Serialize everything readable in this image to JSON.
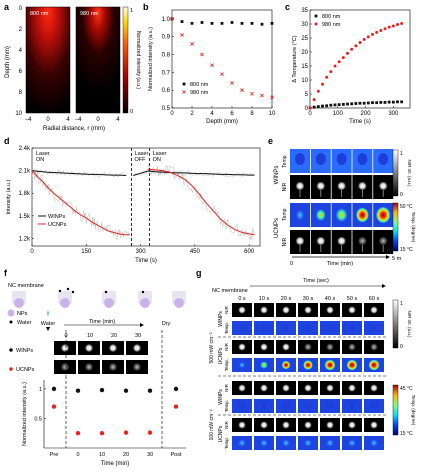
{
  "panels": {
    "a": {
      "label": "a",
      "img1_label": "800 nm",
      "img2_label": "980 nm",
      "ylabel": "Depth (mm)",
      "xlabel": "Radial distance, r (mm)",
      "yticks": [
        "0",
        "2",
        "4",
        "6",
        "8",
        "10"
      ],
      "xticks": [
        "−4",
        "0",
        "4",
        "−4",
        "0",
        "4"
      ],
      "cbar_label": "Normalized intensity (a.u.)",
      "cbar_max": "1",
      "cbar_min": "0"
    },
    "b": {
      "label": "b"
    },
    "c": {
      "label": "c"
    },
    "d": {
      "label": "d",
      "segments": [
        "Laser\nON",
        "Laser\nOFF",
        "Laser\nON"
      ],
      "legend": [
        "WINPs",
        "UCNPs"
      ]
    },
    "e": {
      "label": "e",
      "row_labels": [
        "WINPs",
        "UCNPs"
      ],
      "sub_labels": [
        "Temp.",
        "NIR",
        "Temp.",
        "NIR"
      ],
      "cbar1_top": "1",
      "cbar1_bottom": "0",
      "cbar1_label": "NIR Int. (a.u.)",
      "cbar2_top": "50 °C",
      "cbar2_bottom": "15 °C",
      "cbar2_label": "Temp. (degree)",
      "time_label": "Time (min)",
      "time_end": "5 m",
      "time_start": "0"
    },
    "f": {
      "label": "f",
      "membrane": "NC membrane",
      "legend_nps": "NPs",
      "legend_water": "Water",
      "water_label": "Water",
      "dry_label": "Dry",
      "time_header": "Time (min)",
      "times": [
        "0",
        "10",
        "20",
        "30"
      ],
      "row_labels": [
        "WINPs",
        "UCNPs"
      ],
      "xticks": [
        "Pre",
        "0",
        "10",
        "20",
        "30",
        "Post"
      ],
      "xlabel": "Time (min)",
      "ylabel": "Normalized intensity (a.u.)",
      "yticks": [
        "1",
        "0.5"
      ],
      "winps_vals": [
        1.0,
        0.97,
        0.98,
        0.97,
        0.97,
        1.0
      ],
      "ucnps_vals": [
        0.7,
        0.25,
        0.25,
        0.26,
        0.26,
        0.7
      ]
    },
    "g": {
      "label": "g",
      "membrane": "NC membrane",
      "time_header": "Time (sec)",
      "times": [
        "0 s",
        "10 s",
        "20 s",
        "30 s",
        "40 s",
        "50 s",
        "60 s"
      ],
      "power1": "500 mW cm⁻²",
      "power2": "100 mW cm⁻²",
      "sub_rows": [
        "WINPs",
        "UCNPs"
      ],
      "modes": [
        "NIR",
        "Temp.",
        "NIR",
        "Temp."
      ],
      "cbar1_top": "1",
      "cbar1_bottom": "0",
      "cbar1_label": "NIR Int. (a.u.)",
      "cbar2_top": "45 °C",
      "cbar2_bottom": "15 °C",
      "cbar2_label": "Temp. (degree)"
    }
  },
  "chart_data": [
    {
      "type": "scatter",
      "panel": "b",
      "xlabel": "Depth (mm)",
      "ylabel": "Normalized intensity (a.u.)",
      "xlim": [
        0,
        10
      ],
      "ylim": [
        0.5,
        1.05
      ],
      "xticks": [
        0,
        2,
        4,
        6,
        8,
        10
      ],
      "yticks": [
        0.5,
        0.6,
        0.7,
        0.8,
        0.9,
        1.0
      ],
      "legend": "bottom-left",
      "series": [
        {
          "name": "800 nm",
          "color": "#111111",
          "marker": "square",
          "x": [
            0,
            1,
            2,
            3,
            4,
            5,
            6,
            7,
            8,
            9,
            10
          ],
          "y": [
            1.0,
            0.985,
            0.975,
            0.98,
            0.975,
            0.975,
            0.98,
            0.975,
            0.975,
            0.97,
            0.975
          ]
        },
        {
          "name": "980 nm",
          "color": "#e8231f",
          "marker": "x",
          "x": [
            0,
            1,
            2,
            3,
            4,
            5,
            6,
            7,
            8,
            9,
            10
          ],
          "y": [
            1.0,
            0.91,
            0.86,
            0.8,
            0.74,
            0.69,
            0.64,
            0.6,
            0.58,
            0.57,
            0.56
          ]
        }
      ]
    },
    {
      "type": "scatter",
      "panel": "c",
      "xlabel": "Time (s)",
      "ylabel": "Δ Temperature (°C)",
      "xlim": [
        0,
        360
      ],
      "ylim": [
        0,
        35
      ],
      "xticks": [
        0,
        100,
        200,
        300
      ],
      "yticks": [
        0,
        5,
        10,
        15,
        20,
        25,
        30,
        35
      ],
      "legend": "top-left",
      "series": [
        {
          "name": "800 nm",
          "color": "#111111",
          "marker": "square",
          "x": [
            0,
            15,
            30,
            45,
            60,
            75,
            90,
            105,
            120,
            135,
            150,
            165,
            180,
            195,
            210,
            225,
            240,
            255,
            270,
            285,
            300,
            315,
            330
          ],
          "y": [
            0,
            0.3,
            0.5,
            0.7,
            0.8,
            1.0,
            1.1,
            1.2,
            1.3,
            1.4,
            1.5,
            1.6,
            1.7,
            1.7,
            1.8,
            1.9,
            1.9,
            2.0,
            2.0,
            2.1,
            2.1,
            2.2,
            2.2
          ]
        },
        {
          "name": "980 nm",
          "color": "#e8231f",
          "marker": "circle",
          "x": [
            0,
            15,
            30,
            45,
            60,
            75,
            90,
            105,
            120,
            135,
            150,
            165,
            180,
            195,
            210,
            225,
            240,
            255,
            270,
            285,
            300,
            315,
            330
          ],
          "y": [
            0,
            3,
            6,
            8.5,
            11,
            13,
            15,
            16.5,
            18,
            19.5,
            21,
            22.2,
            23.4,
            24.5,
            25.4,
            26.3,
            27,
            27.7,
            28.3,
            28.9,
            29.3,
            29.8,
            30.2
          ]
        }
      ]
    },
    {
      "type": "line",
      "panel": "d",
      "xlabel": "Time (s)",
      "ylabel": "Intensity (a.u.)",
      "xlim": [
        0,
        630
      ],
      "ylim": [
        1100,
        2400
      ],
      "xticks": [
        0,
        150,
        300,
        450,
        600
      ],
      "yticks": [
        1200,
        1500,
        1800,
        2100,
        2400
      ],
      "ytick_labels": [
        "1.2k",
        "1.5k",
        "1.8k",
        "2.1k",
        "2.4k"
      ],
      "laser_off_region": [
        275,
        325
      ],
      "series": [
        {
          "name": "WINPs",
          "color": "#111111",
          "x": [
            0,
            20,
            40,
            60,
            80,
            100,
            120,
            140,
            160,
            180,
            200,
            220,
            240,
            260,
            280,
            320,
            340,
            360,
            380,
            400,
            420,
            440,
            460,
            480,
            500,
            520,
            540,
            560,
            580,
            600,
            615
          ],
          "y": [
            2100,
            2090,
            2080,
            2075,
            2070,
            2065,
            2060,
            2055,
            2050,
            2050,
            2045,
            2040,
            2040,
            2035,
            2035,
            2095,
            2085,
            2080,
            2075,
            2070,
            2070,
            2065,
            2060,
            2060,
            2055,
            2050,
            2050,
            2045,
            2045,
            2040,
            2040
          ]
        },
        {
          "name": "UCNPs",
          "color": "#e8231f",
          "x": [
            0,
            15,
            30,
            45,
            60,
            75,
            90,
            105,
            120,
            135,
            150,
            165,
            180,
            195,
            210,
            225,
            240,
            255,
            270,
            320,
            340,
            360,
            380,
            400,
            420,
            440,
            460,
            480,
            500,
            520,
            540,
            560,
            580,
            600,
            615
          ],
          "y": [
            2100,
            2020,
            1950,
            1870,
            1800,
            1740,
            1680,
            1620,
            1560,
            1510,
            1470,
            1420,
            1380,
            1340,
            1300,
            1280,
            1260,
            1250,
            1250,
            2120,
            2110,
            2100,
            2080,
            2040,
            1990,
            1910,
            1800,
            1680,
            1570,
            1460,
            1380,
            1320,
            1280,
            1260,
            1250
          ]
        }
      ]
    },
    {
      "type": "scatter",
      "panel": "f",
      "categories": [
        "Pre",
        "0",
        "10",
        "20",
        "30",
        "Post"
      ],
      "xlabel": "Time (min)",
      "ylabel": "Normalized intensity (a.u.)",
      "series": [
        {
          "name": "WINPs",
          "color": "#111111",
          "values": [
            1.0,
            0.97,
            0.98,
            0.97,
            0.97,
            1.0
          ]
        },
        {
          "name": "UCNPs",
          "color": "#e8231f",
          "values": [
            0.7,
            0.25,
            0.25,
            0.26,
            0.26,
            0.7
          ]
        }
      ]
    }
  ]
}
